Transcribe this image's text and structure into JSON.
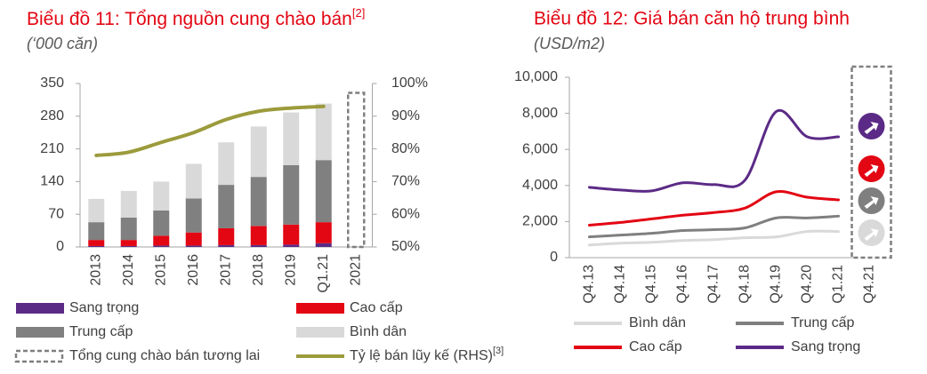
{
  "chart_data": [
    {
      "type": "bar",
      "title": "Biểu đồ 11: Tổng nguồn cung chào bán",
      "title_superscript": "[2]",
      "subtitle": "(‘000 căn)",
      "categories": [
        "2013",
        "2014",
        "2015",
        "2016",
        "2017",
        "2018",
        "2019",
        "Q1.21",
        "2021"
      ],
      "series": [
        {
          "name": "Sang trọng",
          "color": "#5b2a86",
          "values": [
            2,
            2,
            3,
            3,
            4,
            4,
            5,
            8,
            null
          ]
        },
        {
          "name": "Cao cấp",
          "color": "#e30613",
          "values": [
            13,
            13,
            21,
            28,
            36,
            41,
            43,
            45,
            null
          ]
        },
        {
          "name": "Trung cấp",
          "color": "#808080",
          "values": [
            38,
            48,
            54,
            73,
            93,
            105,
            127,
            133,
            null
          ]
        },
        {
          "name": "Bình dân",
          "color": "#d9d9d9",
          "values": [
            50,
            57,
            62,
            74,
            91,
            108,
            113,
            121,
            null
          ]
        },
        {
          "name": "Tổng cung chào bán tương lai",
          "color": "#7f7f7f",
          "dashed": true,
          "values": [
            null,
            null,
            null,
            null,
            null,
            null,
            null,
            null,
            330
          ]
        },
        {
          "name": "Tỷ lệ bán lũy kế (RHS)",
          "name_superscript": "[3]",
          "type": "line",
          "axis": "y2",
          "color": "#9c9b3c",
          "values": [
            78,
            79,
            82,
            85,
            89,
            91.5,
            92.5,
            93,
            null
          ]
        }
      ],
      "ylim": [
        0,
        350
      ],
      "yticks": [
        0,
        70,
        140,
        210,
        280,
        350
      ],
      "y2lim": [
        50,
        100
      ],
      "y2ticks": [
        {
          "value": 50,
          "label": "50%"
        },
        {
          "value": 60,
          "label": "60%"
        },
        {
          "value": 70,
          "label": "70%"
        },
        {
          "value": 80,
          "label": "80%"
        },
        {
          "value": 90,
          "label": "90%"
        },
        {
          "value": 100,
          "label": "100%"
        }
      ]
    },
    {
      "type": "line",
      "title": "Biểu đồ 12: Giá bán căn hộ trung bình",
      "subtitle": "(USD/m2)",
      "categories": [
        "Q4.13",
        "Q4.14",
        "Q4.15",
        "Q4.16",
        "Q4.17",
        "Q4.18",
        "Q4.19",
        "Q4.20",
        "Q1.21",
        "Q4.21"
      ],
      "series": [
        {
          "name": "Bình dân",
          "color": "#d9d9d9",
          "values": [
            700,
            800,
            850,
            950,
            1000,
            1100,
            1150,
            1450,
            1450,
            null
          ]
        },
        {
          "name": "Trung cấp",
          "color": "#7f7f7f",
          "values": [
            1150,
            1250,
            1350,
            1500,
            1550,
            1650,
            2200,
            2200,
            2300,
            null
          ]
        },
        {
          "name": "Cao cấp",
          "color": "#e30613",
          "values": [
            1800,
            1950,
            2150,
            2350,
            2500,
            2750,
            3650,
            3350,
            3200,
            null
          ]
        },
        {
          "name": "Sang trọng",
          "color": "#5b2a86",
          "values": [
            3900,
            3750,
            3700,
            4150,
            4050,
            4300,
            8100,
            6700,
            6700,
            null
          ]
        }
      ],
      "ylim": [
        0,
        10000
      ],
      "yticks": [
        0,
        {
          "value": 2000,
          "label": "2,000"
        },
        {
          "value": 4000,
          "label": "4,000"
        },
        {
          "value": 6000,
          "label": "6,000"
        },
        {
          "value": 8000,
          "label": "8,000"
        },
        {
          "value": 10000,
          "label": "10,000"
        }
      ]
    }
  ]
}
